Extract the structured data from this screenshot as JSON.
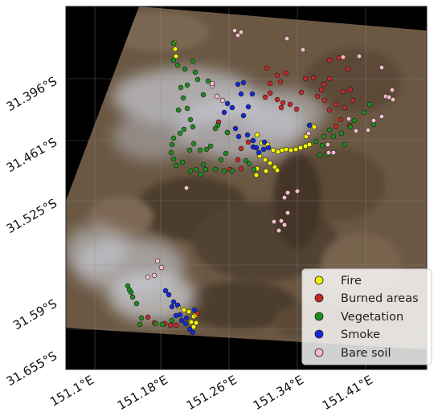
{
  "map": {
    "y_ticks": [
      "31.396°S",
      "31.461°S",
      "31.525°S",
      "31.59°S",
      "31.655°S"
    ],
    "x_ticks": [
      "151.1°E",
      "151.18°E",
      "151.26°E",
      "151.34°E",
      "151.41°E"
    ],
    "legend": [
      {
        "label": "Fire",
        "color": "#f5f500"
      },
      {
        "label": "Burned areas",
        "color": "#c62828"
      },
      {
        "label": "Vegetation",
        "color": "#1e8c1e"
      },
      {
        "label": "Smoke",
        "color": "#1428d8"
      },
      {
        "label": "Bare soil",
        "color": "#f4bcc8"
      }
    ],
    "colors": {
      "background": "#000000",
      "terrain": "#6e5a44",
      "terrain_dark": "#3e3226",
      "smoke": "#c9ccd6",
      "gridline": "#8a8a8a"
    }
  }
}
